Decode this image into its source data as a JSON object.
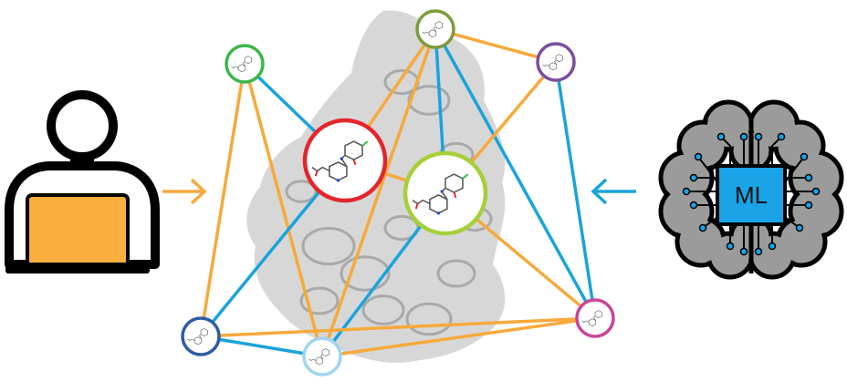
{
  "colors": {
    "orange_edge": "#f7a93b",
    "blue_edge": "#1aa3dc",
    "protein_fill": "#c9c9c9",
    "brain_fill": "#9b9b9b",
    "chip_fill": "#1aa3e6",
    "laptop_fill": "#f9ae3d",
    "node_colors": {
      "green": "#3db54a",
      "olive": "#7f9a3c",
      "purple": "#7a4e9e",
      "red": "#e3262c",
      "lime": "#a6cf38",
      "navy": "#2f5ba6",
      "lightblue": "#9fd5f0",
      "magenta": "#c9449a"
    }
  },
  "icons": {
    "person": "person-at-laptop-icon",
    "brain": "brain-circuit-icon",
    "arrow_left_in": "arrow-right-icon",
    "arrow_right_in": "arrow-left-icon",
    "molecule": "molecule-structure-icon"
  },
  "ml_chip": {
    "label": "ML"
  }
}
